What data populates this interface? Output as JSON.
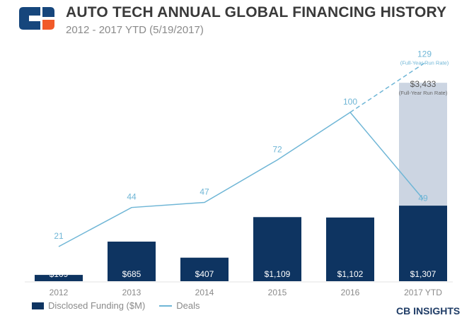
{
  "header": {
    "title": "AUTO TECH ANNUAL GLOBAL FINANCING HISTORY",
    "subtitle": "2012 - 2017 YTD (5/19/2017)",
    "logo_text": "CB INSIGHTS"
  },
  "colors": {
    "bar": "#0e3461",
    "bar_projection": "#ccd5e2",
    "line": "#6fb6d6",
    "label": "#8a8a8a"
  },
  "chart_data": {
    "type": "bar",
    "title": "AUTO TECH ANNUAL GLOBAL FINANCING HISTORY",
    "categories": [
      "2012",
      "2013",
      "2014",
      "2015",
      "2016",
      "2017 YTD"
    ],
    "series": [
      {
        "name": "Disclosed Funding ($M)",
        "type": "bar",
        "values": [
          109,
          685,
          407,
          1109,
          1102,
          1307
        ],
        "labels": [
          "$109",
          "$685",
          "$407",
          "$1,109",
          "$1,102",
          "$1,307"
        ]
      },
      {
        "name": "Deals",
        "type": "line",
        "values": [
          21,
          44,
          47,
          72,
          100,
          49
        ]
      }
    ],
    "projections": {
      "funding": {
        "value": 3433,
        "label": "$3,433",
        "note": "(Full-Year Run Rate)"
      },
      "deals": {
        "value": 129,
        "label": "129",
        "note": "(Full-Year Run Rate)"
      }
    },
    "legend": [
      "Disclosed Funding ($M)",
      "Deals"
    ],
    "legend_position": "bottom-left"
  }
}
